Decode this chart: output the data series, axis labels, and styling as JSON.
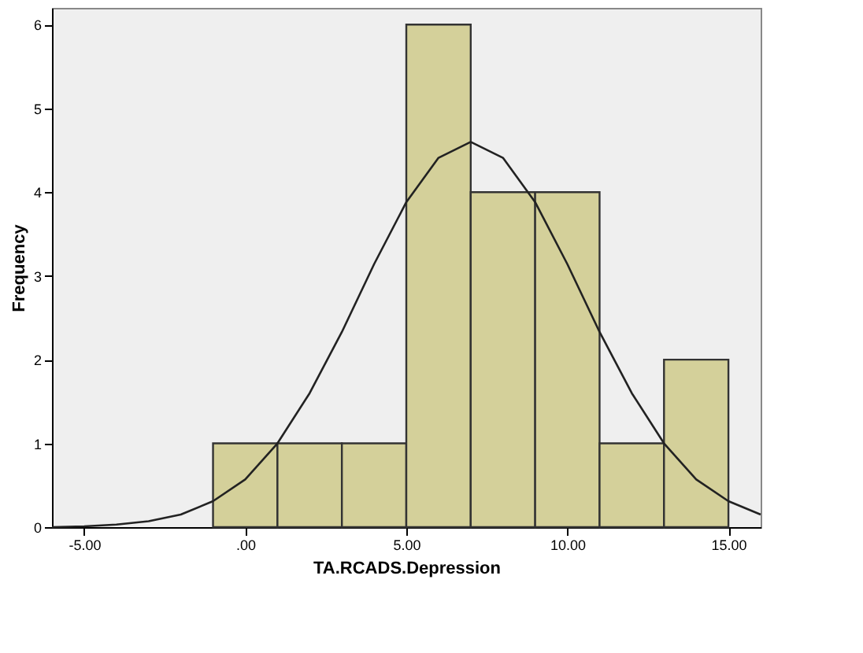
{
  "chart_data": {
    "type": "histogram",
    "xlabel": "TA.RCADS.Depression",
    "ylabel": "Frequency",
    "bins": [
      -1,
      1,
      3,
      5,
      7,
      9,
      11,
      13,
      15
    ],
    "values": [
      1,
      1,
      1,
      6,
      4,
      4,
      1,
      2
    ],
    "color": "#d4d09a",
    "series": [
      {
        "type": "line",
        "color": "#222222",
        "x": [
          -6,
          -5,
          -4,
          -3,
          -2,
          -1,
          0,
          1,
          2,
          3,
          4,
          5,
          6,
          7,
          8,
          9,
          10,
          11,
          12,
          13,
          14,
          15,
          16
        ],
        "values": [
          0.0,
          0.01,
          0.03,
          0.07,
          0.15,
          0.31,
          0.57,
          1.0,
          1.6,
          2.33,
          3.14,
          3.88,
          4.41,
          4.6,
          4.41,
          3.88,
          3.14,
          2.33,
          1.6,
          1.0,
          0.57,
          0.31,
          0.15
        ]
      }
    ],
    "xlim": [
      -6,
      16
    ],
    "xticks": [
      {
        "value": -5,
        "label": "-5.00"
      },
      {
        "value": 0,
        "label": ".00"
      },
      {
        "value": 5,
        "label": "5.00"
      },
      {
        "value": 10,
        "label": "10.00"
      },
      {
        "value": 15,
        "label": "15.00"
      }
    ],
    "ylim": [
      0,
      6.2
    ],
    "yticks": [
      0,
      1,
      2,
      3,
      4,
      5,
      6
    ],
    "grid": false,
    "legend": false
  }
}
